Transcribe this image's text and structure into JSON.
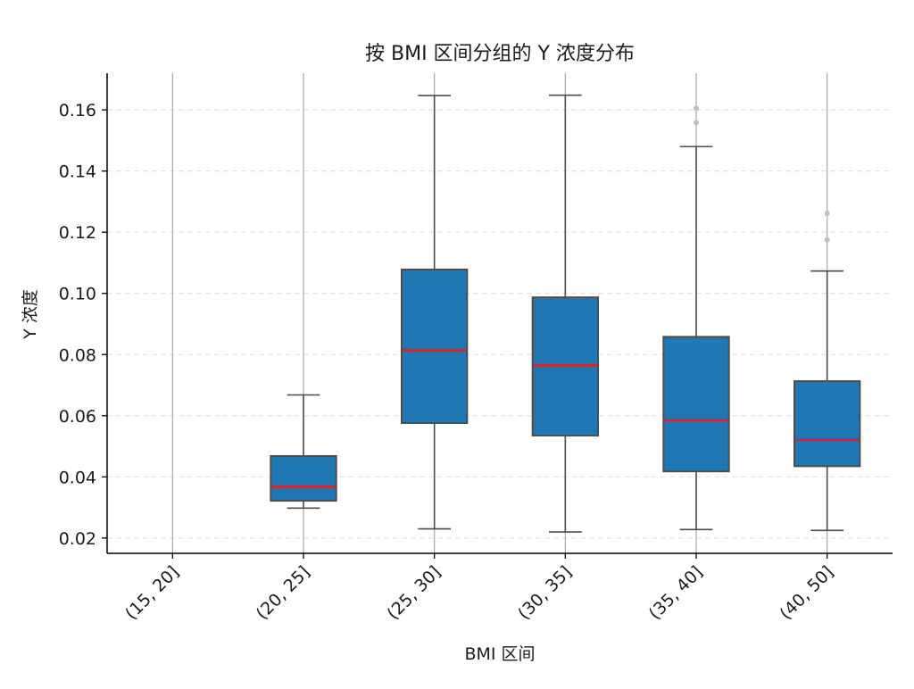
{
  "chart_data": {
    "type": "box",
    "title": "按 BMI 区间分组的 Y 浓度分布",
    "xlabel": "BMI 区间",
    "ylabel": "Y 浓度",
    "ylim": [
      0.015,
      0.172
    ],
    "yticks": [
      0.02,
      0.04,
      0.06,
      0.08,
      0.1,
      0.12,
      0.14,
      0.16
    ],
    "ytick_labels": [
      "0.02",
      "0.04",
      "0.06",
      "0.08",
      "0.10",
      "0.12",
      "0.14",
      "0.16"
    ],
    "grid": "y-dashed",
    "colors": {
      "box": "#1f77b4",
      "median": "#d62728",
      "edge": "#4d4d4d",
      "outlier": "#bfbfbf"
    },
    "categories": [
      "(15, 20]",
      "(20, 25]",
      "(25, 30]",
      "(30, 35]",
      "(35, 40]",
      "(40, 50]"
    ],
    "boxes": [
      null,
      {
        "whisker_low": 0.0298,
        "q1": 0.0322,
        "median": 0.0368,
        "q3": 0.0468,
        "whisker_high": 0.0668,
        "outliers": []
      },
      {
        "whisker_low": 0.023,
        "q1": 0.0576,
        "median": 0.0815,
        "q3": 0.1078,
        "whisker_high": 0.1647,
        "outliers": []
      },
      {
        "whisker_low": 0.022,
        "q1": 0.0535,
        "median": 0.0765,
        "q3": 0.0987,
        "whisker_high": 0.1648,
        "outliers": []
      },
      {
        "whisker_low": 0.0228,
        "q1": 0.0418,
        "median": 0.0585,
        "q3": 0.0858,
        "whisker_high": 0.148,
        "outliers": [
          0.1558,
          0.1605
        ]
      },
      {
        "whisker_low": 0.0225,
        "q1": 0.0435,
        "median": 0.0522,
        "q3": 0.0713,
        "whisker_high": 0.1073,
        "outliers": [
          0.1175,
          0.1262
        ]
      }
    ]
  }
}
